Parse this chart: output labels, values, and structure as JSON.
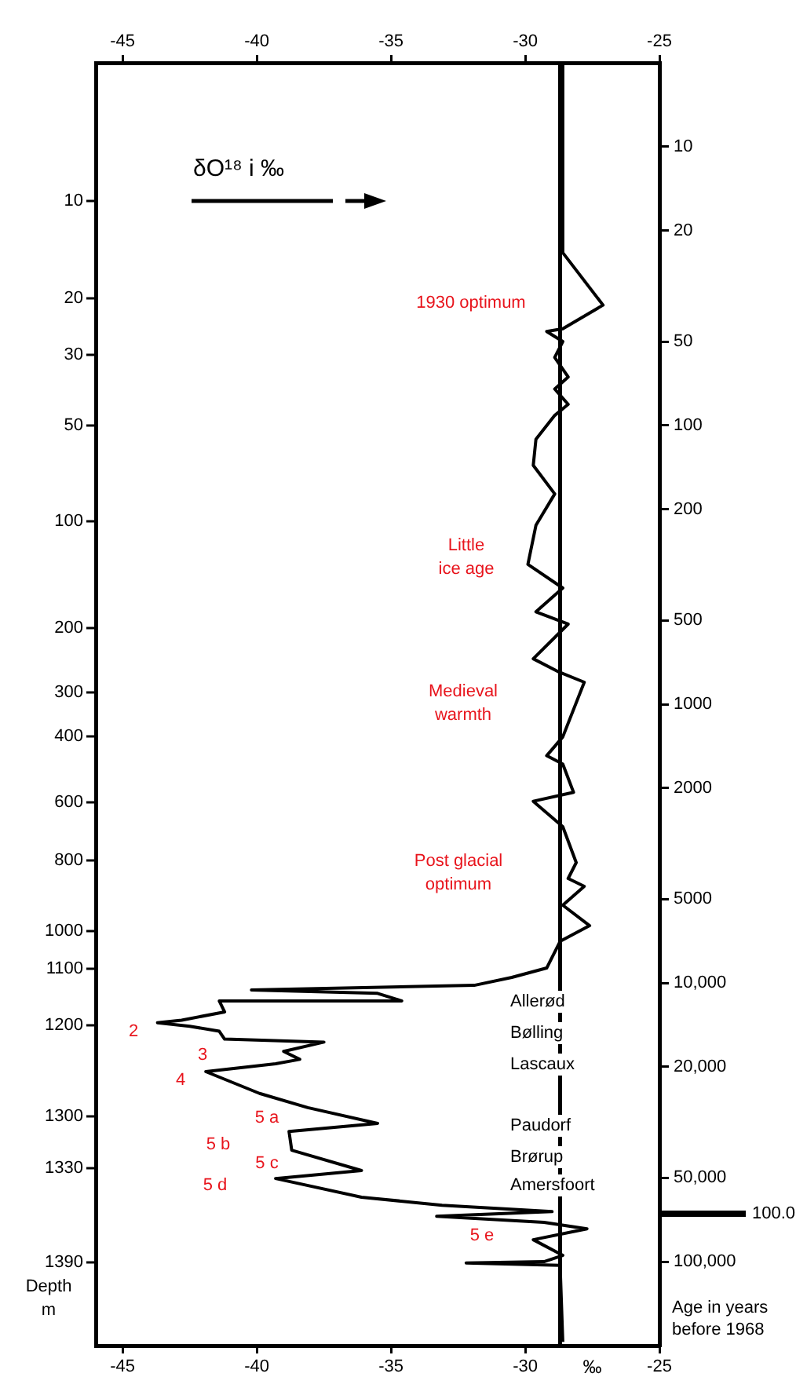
{
  "chart_data": {
    "type": "line",
    "title": "δO¹⁸ i ‰",
    "xlabel": "‰",
    "ylabel": "Age in years\nbefore 1968",
    "xlim": [
      -46,
      -25
    ],
    "xticks": [
      -45,
      -40,
      -35,
      -30,
      -25
    ],
    "x2lim": [
      -46,
      -25
    ],
    "x2ticks": [
      -45,
      -40,
      -35,
      -30,
      -25
    ],
    "ylim": [
      200000,
      5
    ],
    "log": "y",
    "grid": false,
    "legend": false,
    "yticks": [
      {
        "value": 10,
        "label": "10"
      },
      {
        "value": 20,
        "label": "20"
      },
      {
        "value": 50,
        "label": "50"
      },
      {
        "value": 100,
        "label": "100"
      },
      {
        "value": 200,
        "label": "200"
      },
      {
        "value": 500,
        "label": "500"
      },
      {
        "value": 1000,
        "label": "1000"
      },
      {
        "value": 2000,
        "label": "2000"
      },
      {
        "value": 5000,
        "label": "5000"
      },
      {
        "value": 10000,
        "label": "10,000"
      },
      {
        "value": 20000,
        "label": "20,000"
      },
      {
        "value": 50000,
        "label": "50,000"
      },
      {
        "value": 100000,
        "label": "100,000"
      }
    ],
    "series": [
      {
        "color": "#000000",
        "x": [
          -28.6,
          -28.6,
          -27.1,
          -28.6,
          -29.2,
          -28.6,
          -28.9,
          -28.4,
          -28.9,
          -28.4,
          -28.9,
          -29.6,
          -29.7,
          -28.9,
          -29.6,
          -29.9,
          -28.6,
          -29.6,
          -28.4,
          -29.7,
          -28.8,
          -27.8,
          -28.6,
          -29.2,
          -28.6,
          -28.2,
          -29.7,
          -28.6,
          -28.1,
          -28.4,
          -27.8,
          -28.6,
          -27.6,
          -28.7,
          -29.2,
          -30.5,
          -31.9,
          -40.2,
          -35.5,
          -34.6,
          -41.4,
          -41.2,
          -42.8,
          -43.7,
          -42.5,
          -41.4,
          -41.2,
          -37.5,
          -39.0,
          -38.4,
          -39.3,
          -41.9,
          -39.9,
          -38.1,
          -35.5,
          -38.8,
          -38.7,
          -36.1,
          -39.3,
          -36.1,
          -33.1,
          -29.0,
          -33.3,
          -29.3,
          -27.7,
          -29.7,
          -28.6,
          -29.3,
          -32.2,
          -28.7,
          -28.6
        ],
        "values": [
          5.1,
          24,
          37,
          45,
          46,
          50,
          57,
          67,
          74,
          84,
          92,
          112,
          139,
          176,
          228,
          315,
          383,
          466,
          516,
          687,
          762,
          834,
          1310,
          1530,
          1640,
          2070,
          2230,
          2750,
          3700,
          4220,
          4500,
          5260,
          6230,
          7090,
          8840,
          9550,
          10200,
          10600,
          10900,
          11600,
          11600,
          12700,
          13600,
          13900,
          14300,
          14900,
          15900,
          16300,
          17600,
          18800,
          19500,
          20800,
          24900,
          28000,
          31900,
          34100,
          39800,
          47100,
          50300,
          58700,
          62700,
          66100,
          68700,
          72300,
          76200,
          83400,
          94900,
          100000,
          101000,
          103000,
          194000
        ]
      }
    ],
    "ref_lines": [
      {
        "axis": "x",
        "value": -28.7
      }
    ],
    "annotations": [
      "1930 optimum",
      "Little\nice age",
      "Medieval\nwarmth",
      "Post glacial\noptimum",
      "2",
      "3",
      "4",
      "5 a",
      "5 b",
      "5 c",
      "5 d",
      "5 e",
      "Allerød",
      "Bølling",
      "Lascaux",
      "Paudorf",
      "Brørup",
      "Amersfoort",
      "100.0",
      "Depth\nm",
      "10",
      "20",
      "30",
      "50",
      "100",
      "200",
      "300",
      "400",
      "600",
      "800",
      "1000",
      "1100",
      "1200",
      "1300",
      "1330",
      "1390"
    ]
  }
}
